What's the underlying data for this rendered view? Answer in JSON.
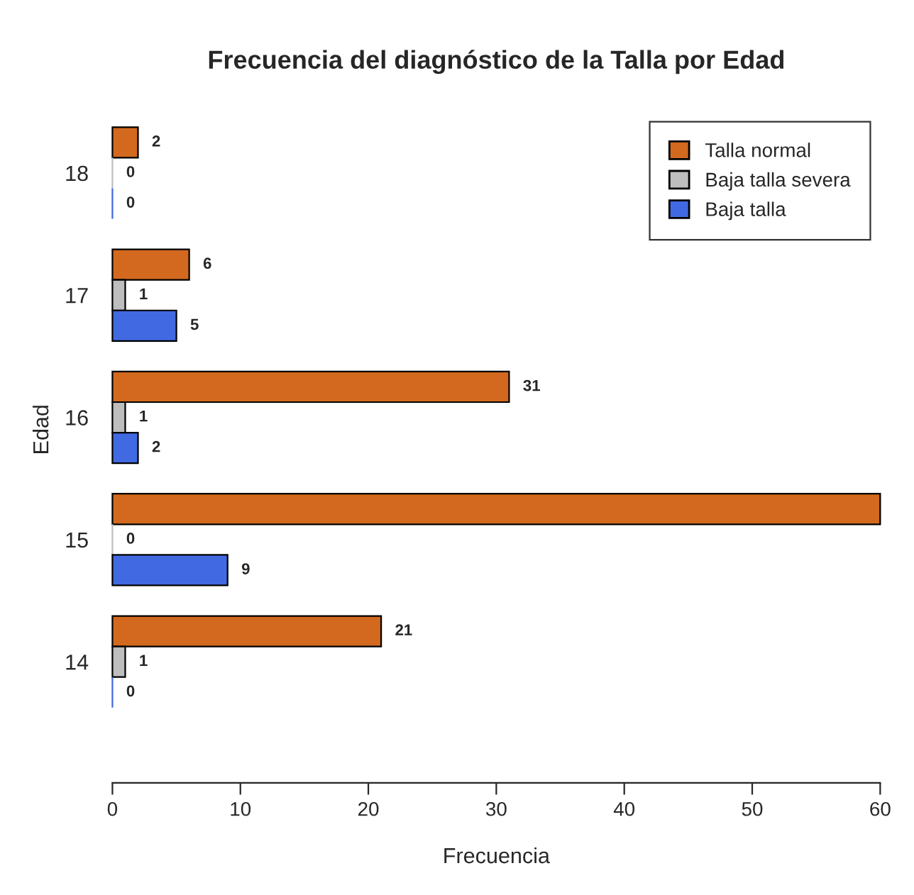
{
  "chart_data": {
    "type": "bar",
    "orientation": "horizontal",
    "title": "Frecuencia del diagnóstico de la Talla por Edad",
    "xlabel": "Frecuencia",
    "ylabel": "Edad",
    "categories": [
      "18",
      "17",
      "16",
      "15",
      "14"
    ],
    "series": [
      {
        "name": "Talla normal",
        "color": "#d2691e",
        "values": [
          2,
          6,
          31,
          60,
          21
        ],
        "value_labels": [
          "2",
          "6",
          "31",
          null,
          "21"
        ]
      },
      {
        "name": "Baja talla severa",
        "color": "#bebebe",
        "values": [
          0,
          1,
          1,
          0,
          1
        ],
        "value_labels": [
          "0",
          "1",
          "1",
          "0",
          "1"
        ]
      },
      {
        "name": "Baja talla",
        "color": "#4169e1",
        "values": [
          0,
          5,
          2,
          9,
          0
        ],
        "value_labels": [
          "0",
          "5",
          "2",
          "9",
          "0"
        ]
      }
    ],
    "xlim": [
      0,
      60
    ],
    "xticks": [
      0,
      10,
      20,
      30,
      40,
      50,
      60
    ],
    "grid": false,
    "legend": "top right"
  }
}
